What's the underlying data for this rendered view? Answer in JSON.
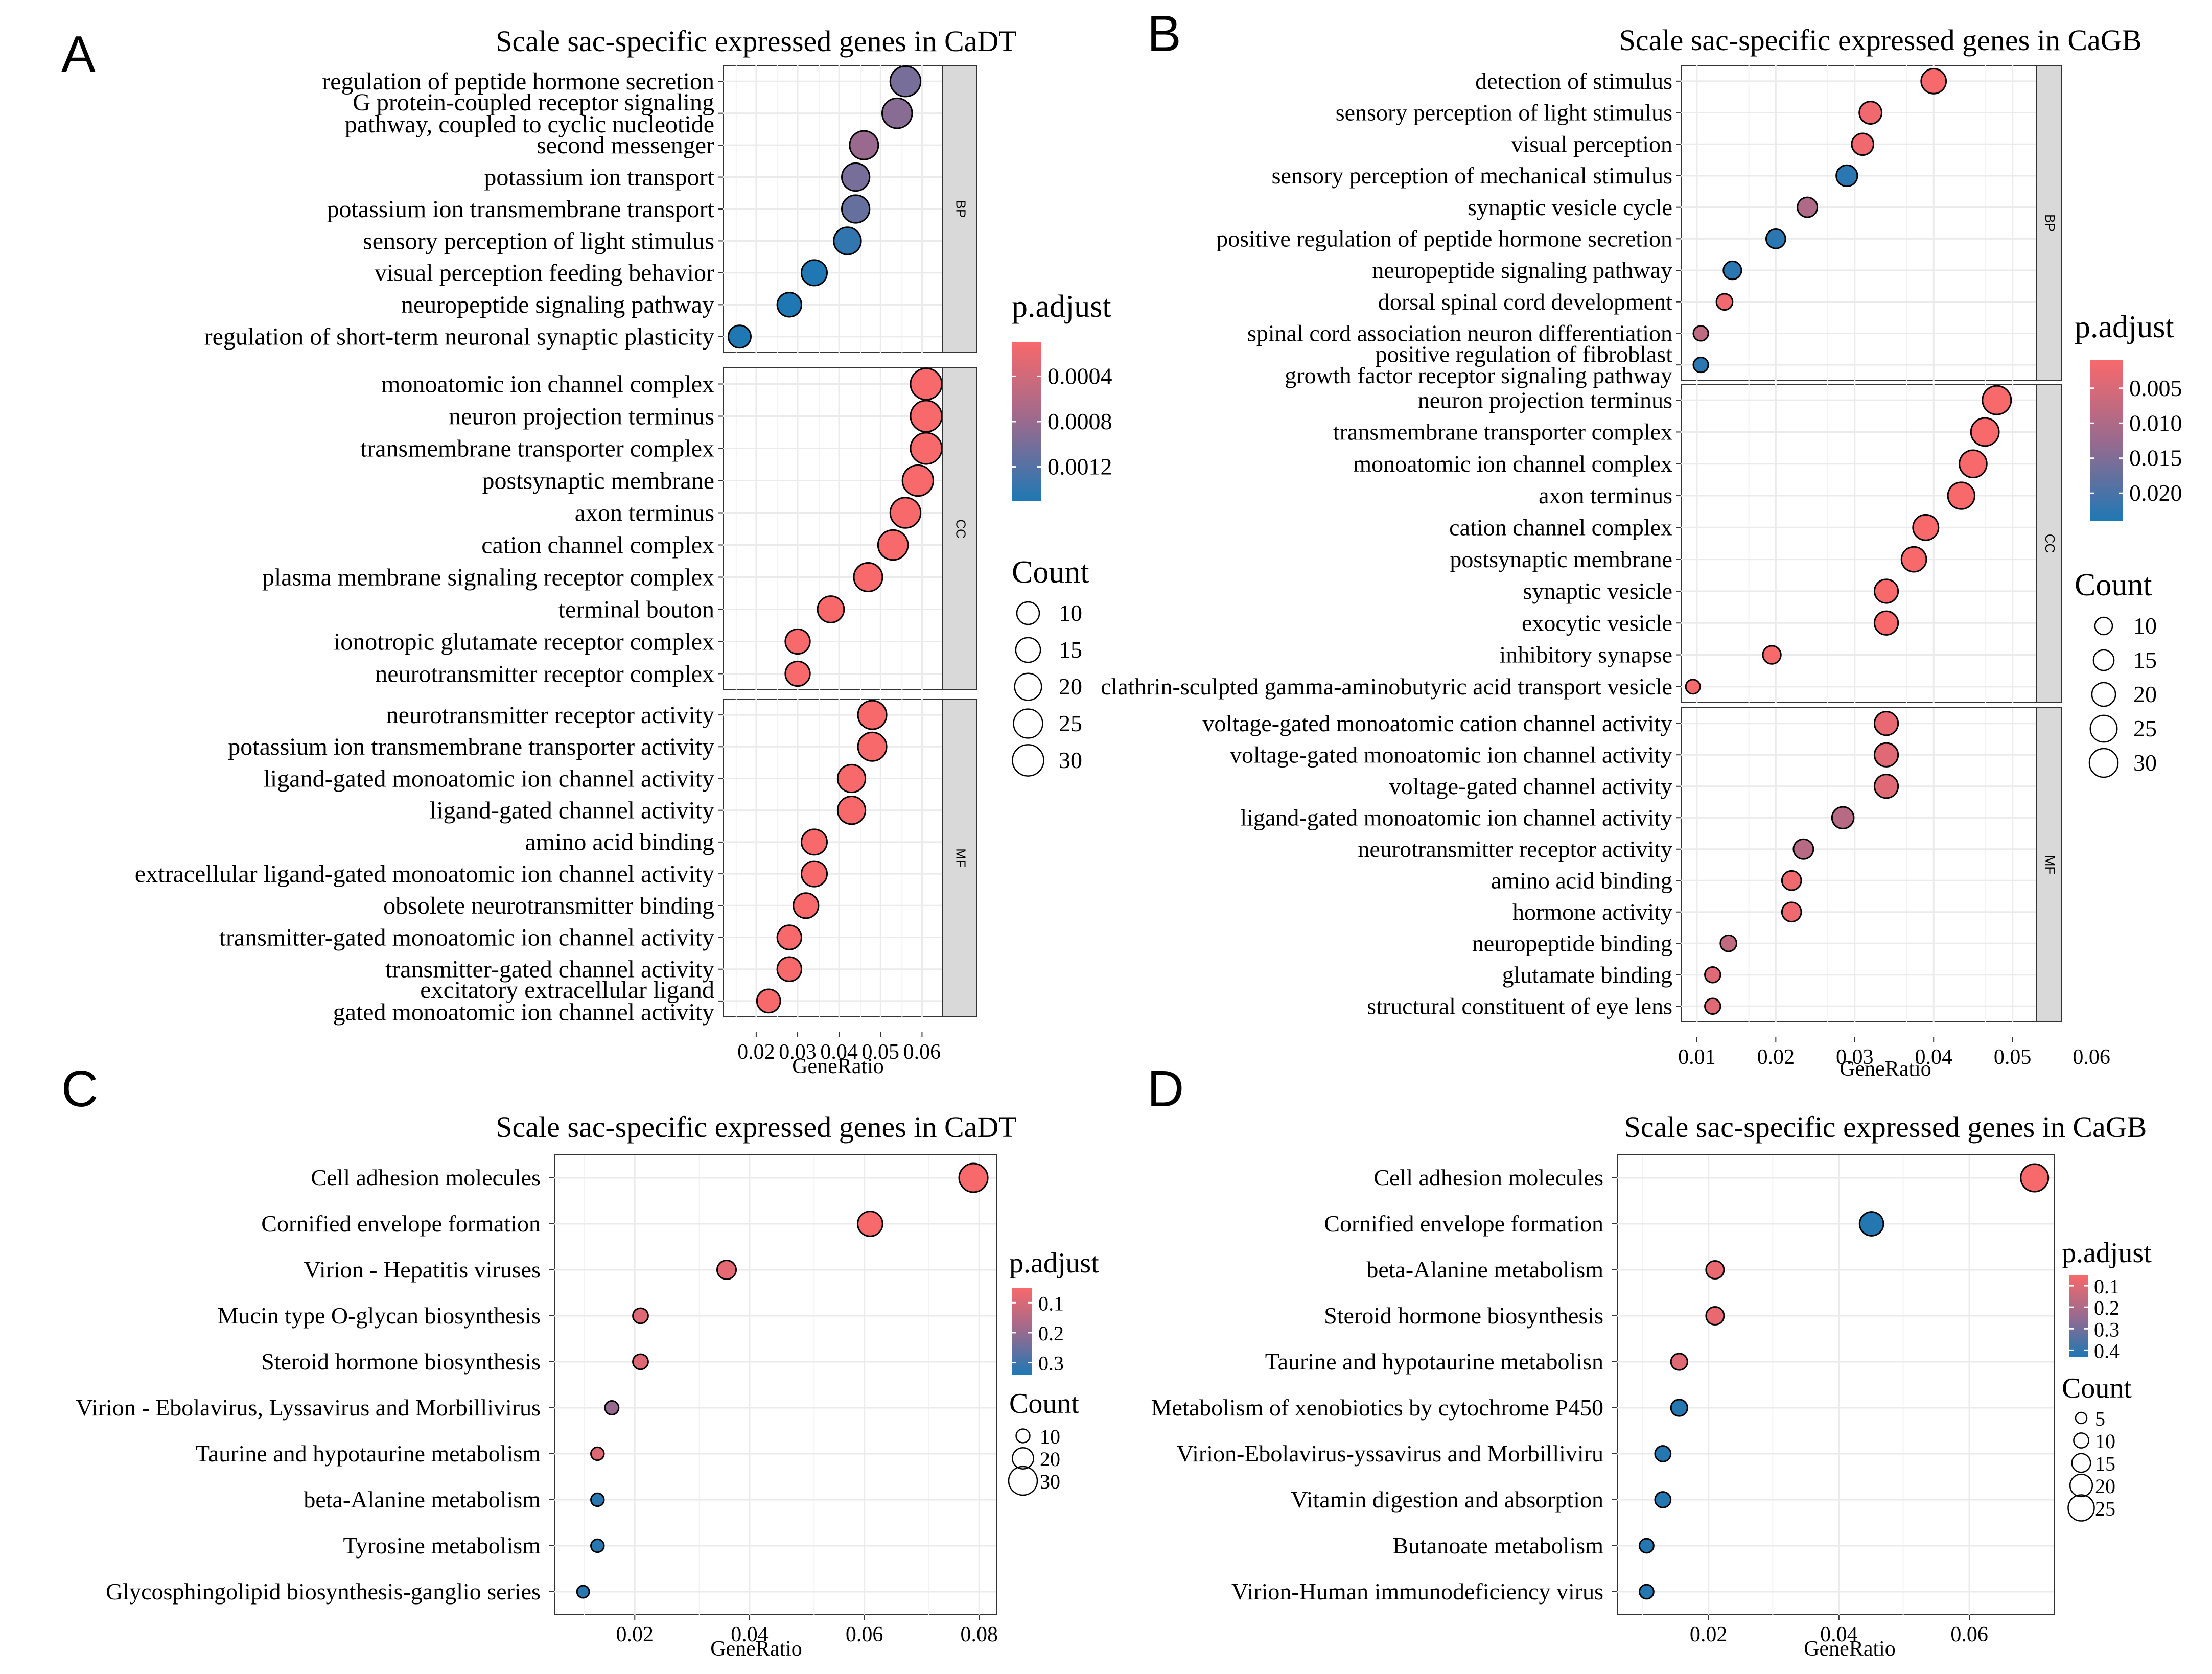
{
  "colors": {
    "low_padj": "#f8696b",
    "high_padj": "#1f78b4",
    "grid": "#ebebeb",
    "strip_bg": "#d9d9d9"
  },
  "chart_data": [
    {
      "panel": "A",
      "type": "scatter",
      "title": "Scale sac-specific expressed genes in CaDT",
      "xlabel": "GeneRatio",
      "xlim": [
        0.012,
        0.065
      ],
      "xticks": [
        0.02,
        0.03,
        0.04,
        0.05,
        0.06
      ],
      "xtick_labels": [
        "0.02",
        "0.03",
        "0.04",
        "0.05",
        "0.06"
      ],
      "facets": [
        {
          "name": "BP",
          "points": [
            {
              "term": "regulation of peptide hormone secretion",
              "x": 0.056,
              "count": 28,
              "p": 0.001
            },
            {
              "term": "G protein-coupled receptor signaling pathway, coupled to cyclic nucleotide",
              "x": 0.054,
              "count": 27,
              "p": 0.0009
            },
            {
              "term": "second messenger",
              "x": 0.046,
              "count": 24,
              "p": 0.0008
            },
            {
              "term": "potassium ion transport",
              "x": 0.044,
              "count": 22,
              "p": 0.001
            },
            {
              "term": "potassium ion transmembrane transport",
              "x": 0.044,
              "count": 22,
              "p": 0.0011
            },
            {
              "term": "sensory perception of light stimulus",
              "x": 0.042,
              "count": 21,
              "p": 0.0014
            },
            {
              "term": "visual perception feeding behavior",
              "x": 0.034,
              "count": 17,
              "p": 0.0015
            },
            {
              "term": "neuropeptide signaling pathway",
              "x": 0.028,
              "count": 14,
              "p": 0.0015
            },
            {
              "term": "regulation of short-term neuronal synaptic plasticity",
              "x": 0.016,
              "count": 8,
              "p": 0.0015
            }
          ]
        },
        {
          "name": "CC",
          "points": [
            {
              "term": "monoatomic ion channel complex",
              "x": 0.061,
              "count": 30,
              "p": 0.0001
            },
            {
              "term": "neuron projection terminus",
              "x": 0.061,
              "count": 30,
              "p": 0.0001
            },
            {
              "term": "transmembrane transporter complex",
              "x": 0.061,
              "count": 30,
              "p": 0.0001
            },
            {
              "term": "postsynaptic membrane",
              "x": 0.059,
              "count": 29,
              "p": 0.0001
            },
            {
              "term": "axon terminus",
              "x": 0.056,
              "count": 28,
              "p": 0.0001
            },
            {
              "term": "cation channel complex",
              "x": 0.053,
              "count": 27,
              "p": 0.0001
            },
            {
              "term": "plasma membrane signaling receptor complex",
              "x": 0.047,
              "count": 24,
              "p": 0.0001
            },
            {
              "term": "terminal bouton",
              "x": 0.038,
              "count": 19,
              "p": 0.0001
            },
            {
              "term": "ionotropic glutamate receptor complex",
              "x": 0.03,
              "count": 15,
              "p": 0.0001
            },
            {
              "term": "neurotransmitter receptor complex",
              "x": 0.03,
              "count": 15,
              "p": 0.0001
            }
          ]
        },
        {
          "name": "MF",
          "points": [
            {
              "term": "neurotransmitter receptor activity",
              "x": 0.048,
              "count": 24,
              "p": 0.0001
            },
            {
              "term": "potassium ion transmembrane transporter activity",
              "x": 0.048,
              "count": 24,
              "p": 0.0001
            },
            {
              "term": "ligand-gated monoatomic ion channel activity",
              "x": 0.043,
              "count": 22,
              "p": 0.0001
            },
            {
              "term": "ligand-gated channel activity",
              "x": 0.043,
              "count": 22,
              "p": 0.0001
            },
            {
              "term": "amino acid binding",
              "x": 0.034,
              "count": 17,
              "p": 0.0001
            },
            {
              "term": "extracellular ligand-gated monoatomic ion channel activity",
              "x": 0.034,
              "count": 17,
              "p": 0.0001
            },
            {
              "term": "obsolete neurotransmitter binding",
              "x": 0.032,
              "count": 16,
              "p": 0.0001
            },
            {
              "term": "transmitter-gated monoatomic ion channel activity",
              "x": 0.028,
              "count": 14,
              "p": 0.0001
            },
            {
              "term": "transmitter-gated channel activity",
              "x": 0.028,
              "count": 14,
              "p": 0.0001
            },
            {
              "term": "excitatory extracellular ligand gated monoatomic ion channel activity",
              "x": 0.023,
              "count": 12,
              "p": 0.0001
            }
          ]
        }
      ],
      "legend": {
        "color_title": "p.adjust",
        "pmin": 0.0001,
        "pmax": 0.0015,
        "color_ticks": [
          0.0004,
          0.0008,
          0.0012
        ],
        "color_tick_labels": [
          "0.0004",
          "0.0008",
          "0.0012"
        ],
        "size_title": "Count",
        "size_values": [
          10,
          15,
          20,
          25,
          30
        ]
      }
    },
    {
      "panel": "B",
      "type": "scatter",
      "title": "Scale sac-specific expressed genes in CaGB",
      "xlabel": "GeneRatio",
      "xlim": [
        0.008,
        0.053
      ],
      "xticks": [
        0.01,
        0.02,
        0.03,
        0.04,
        0.05,
        0.06
      ],
      "xtick_labels": [
        "0.01",
        "0.02",
        "0.03",
        "0.04",
        "0.05",
        "0.06"
      ],
      "facets": [
        {
          "name": "BP",
          "points": [
            {
              "term": "detection of stimulus",
              "x": 0.04,
              "count": 22,
              "p": 0.001
            },
            {
              "term": "sensory perception of light stimulus",
              "x": 0.032,
              "count": 18,
              "p": 0.002
            },
            {
              "term": "visual perception",
              "x": 0.031,
              "count": 17,
              "p": 0.002
            },
            {
              "term": "sensory perception of mechanical stimulus",
              "x": 0.029,
              "count": 16,
              "p": 0.023
            },
            {
              "term": "synaptic vesicle cycle",
              "x": 0.024,
              "count": 14,
              "p": 0.01
            },
            {
              "term": "positive regulation of peptide hormone secretion",
              "x": 0.02,
              "count": 13,
              "p": 0.023
            },
            {
              "term": "neuropeptide signaling pathway",
              "x": 0.0145,
              "count": 11,
              "p": 0.023
            },
            {
              "term": "dorsal spinal cord development",
              "x": 0.0135,
              "count": 8,
              "p": 0.002
            },
            {
              "term": "spinal cord association neuron differentiation",
              "x": 0.0105,
              "count": 6,
              "p": 0.008
            },
            {
              "term": "positive regulation of fibroblast growth factor receptor signaling pathway",
              "x": 0.0105,
              "count": 6,
              "p": 0.023
            }
          ]
        },
        {
          "name": "CC",
          "points": [
            {
              "term": "neuron projection terminus",
              "x": 0.048,
              "count": 28,
              "p": 0.001
            },
            {
              "term": "transmembrane transporter complex",
              "x": 0.0465,
              "count": 27,
              "p": 0.001
            },
            {
              "term": "monoatomic ion channel complex",
              "x": 0.045,
              "count": 26,
              "p": 0.001
            },
            {
              "term": "axon terminus",
              "x": 0.0435,
              "count": 25,
              "p": 0.001
            },
            {
              "term": "cation channel complex",
              "x": 0.039,
              "count": 23,
              "p": 0.001
            },
            {
              "term": "postsynaptic membrane",
              "x": 0.0375,
              "count": 22,
              "p": 0.001
            },
            {
              "term": "synaptic vesicle",
              "x": 0.034,
              "count": 20,
              "p": 0.001
            },
            {
              "term": "exocytic vesicle",
              "x": 0.034,
              "count": 20,
              "p": 0.001
            },
            {
              "term": "inhibitory synapse",
              "x": 0.0195,
              "count": 11,
              "p": 0.001
            },
            {
              "term": "clathrin-sculpted gamma-aminobutyric acid transport vesicle",
              "x": 0.0095,
              "count": 5,
              "p": 0.001
            }
          ]
        },
        {
          "name": "MF",
          "points": [
            {
              "term": "voltage-gated monoatomic cation channel activity",
              "x": 0.034,
              "count": 20,
              "p": 0.003
            },
            {
              "term": "voltage-gated monoatomic ion channel activity",
              "x": 0.034,
              "count": 20,
              "p": 0.004
            },
            {
              "term": "voltage-gated channel activity",
              "x": 0.034,
              "count": 20,
              "p": 0.004
            },
            {
              "term": "ligand-gated monoatomic ion channel activity",
              "x": 0.0285,
              "count": 17,
              "p": 0.009
            },
            {
              "term": "neurotransmitter receptor activity",
              "x": 0.0235,
              "count": 14,
              "p": 0.009
            },
            {
              "term": "amino acid binding",
              "x": 0.022,
              "count": 13,
              "p": 0.002
            },
            {
              "term": "hormone activity",
              "x": 0.022,
              "count": 13,
              "p": 0.002
            },
            {
              "term": "neuropeptide binding",
              "x": 0.014,
              "count": 8,
              "p": 0.008
            },
            {
              "term": "glutamate binding",
              "x": 0.012,
              "count": 7,
              "p": 0.004
            },
            {
              "term": "structural constituent of eye lens",
              "x": 0.012,
              "count": 7,
              "p": 0.004
            }
          ]
        }
      ],
      "legend": {
        "color_title": "p.adjust",
        "pmin": 0.001,
        "pmax": 0.024,
        "color_ticks": [
          0.005,
          0.01,
          0.015,
          0.02
        ],
        "color_tick_labels": [
          "0.005",
          "0.010",
          "0.015",
          "0.020"
        ],
        "size_title": "Count",
        "size_values": [
          10,
          15,
          20,
          25,
          30
        ]
      }
    },
    {
      "panel": "C",
      "type": "scatter",
      "title": "Scale sac-specific expressed genes in CaDT",
      "xlabel": "GeneRatio",
      "xlim": [
        0.006,
        0.083
      ],
      "xticks": [
        0.02,
        0.04,
        0.06,
        0.08
      ],
      "xtick_labels": [
        "0.02",
        "0.04",
        "0.06",
        "0.08"
      ],
      "facets": [
        {
          "name": "",
          "points": [
            {
              "term": "Cell adhesion molecules",
              "x": 0.079,
              "count": 30,
              "p": 0.05
            },
            {
              "term": "Cornified envelope formation",
              "x": 0.061,
              "count": 25,
              "p": 0.05
            },
            {
              "term": "Virion - Hepatitis viruses",
              "x": 0.036,
              "count": 17,
              "p": 0.08
            },
            {
              "term": "Mucin type O-glycan biosynthesis",
              "x": 0.021,
              "count": 12,
              "p": 0.09
            },
            {
              "term": "Steroid hormone biosynthesis",
              "x": 0.021,
              "count": 12,
              "p": 0.09
            },
            {
              "term": "Virion - Ebolavirus, Lyssavirus and Morbillivirus",
              "x": 0.016,
              "count": 10,
              "p": 0.2
            },
            {
              "term": "Taurine and hypotaurine metabolism",
              "x": 0.0135,
              "count": 9,
              "p": 0.09
            },
            {
              "term": "beta-Alanine metabolism",
              "x": 0.0135,
              "count": 9,
              "p": 0.33
            },
            {
              "term": "Tyrosine metabolism",
              "x": 0.0135,
              "count": 9,
              "p": 0.33
            },
            {
              "term": "Glycosphingolipid biosynthesis-ganglio series",
              "x": 0.011,
              "count": 8,
              "p": 0.33
            }
          ]
        }
      ],
      "legend": {
        "color_title": "p.adjust",
        "pmin": 0.05,
        "pmax": 0.34,
        "color_ticks": [
          0.1,
          0.2,
          0.3
        ],
        "color_tick_labels": [
          "0.1",
          "0.2",
          "0.3"
        ],
        "size_title": "Count",
        "size_values": [
          10,
          20,
          30
        ]
      }
    },
    {
      "panel": "D",
      "type": "scatter",
      "title": "Scale sac-specific expressed genes in CaGB",
      "xlabel": "GeneRatio",
      "xlim": [
        0.006,
        0.073
      ],
      "xticks": [
        0.02,
        0.04,
        0.06
      ],
      "xtick_labels": [
        "0.02",
        "0.04",
        "0.06"
      ],
      "facets": [
        {
          "name": "",
          "points": [
            {
              "term": "Cell adhesion molecules",
              "x": 0.07,
              "count": 27,
              "p": 0.05
            },
            {
              "term": "Cornified envelope formation",
              "x": 0.045,
              "count": 22,
              "p": 0.42
            },
            {
              "term": "beta-Alanine metabolism",
              "x": 0.021,
              "count": 14,
              "p": 0.08
            },
            {
              "term": "Steroid hormone biosynthesis",
              "x": 0.021,
              "count": 14,
              "p": 0.08
            },
            {
              "term": "Taurine and hypotaurine metabolisn",
              "x": 0.0155,
              "count": 12,
              "p": 0.1
            },
            {
              "term": "Metabolism of xenobiotics by cytochrome P450",
              "x": 0.0155,
              "count": 12,
              "p": 0.42
            },
            {
              "term": "Virion-Ebolavirus-yssavirus and Morbilliviru",
              "x": 0.013,
              "count": 11,
              "p": 0.42
            },
            {
              "term": "Vitamin digestion and absorption",
              "x": 0.013,
              "count": 11,
              "p": 0.42
            },
            {
              "term": "Butanoate metabolism",
              "x": 0.0105,
              "count": 9,
              "p": 0.42
            },
            {
              "term": "Virion-Human immunodeficiency virus",
              "x": 0.0105,
              "count": 9,
              "p": 0.42
            }
          ]
        }
      ],
      "legend": {
        "color_title": "p.adjust",
        "pmin": 0.05,
        "pmax": 0.43,
        "color_ticks": [
          0.1,
          0.2,
          0.3,
          0.4
        ],
        "color_tick_labels": [
          "0.1",
          "0.2",
          "0.3",
          "0.4"
        ],
        "size_title": "Count",
        "size_values": [
          5,
          10,
          15,
          20,
          25
        ]
      }
    }
  ]
}
